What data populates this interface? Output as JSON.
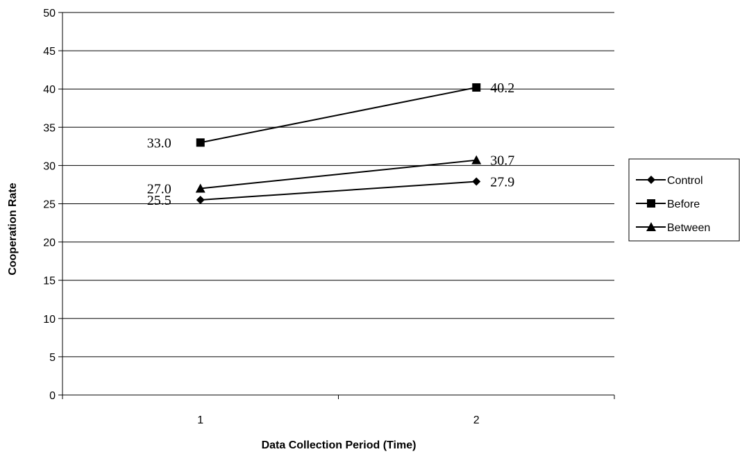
{
  "chart_data": {
    "type": "line",
    "categories": [
      "1",
      "2"
    ],
    "xlabel": "Data Collection Period (Time)",
    "ylabel": "Cooperation Rate",
    "ylim": [
      0,
      50
    ],
    "ytick_step": 5,
    "grid": true,
    "legend_position": "right",
    "series": [
      {
        "name": "Control",
        "marker": "diamond",
        "values": [
          25.5,
          27.9
        ],
        "labels": [
          "25.5",
          "27.9"
        ]
      },
      {
        "name": "Before",
        "marker": "square",
        "values": [
          33.0,
          40.2
        ],
        "labels": [
          "33.0",
          "40.2"
        ]
      },
      {
        "name": "Between",
        "marker": "triangle",
        "values": [
          27.0,
          30.7
        ],
        "labels": [
          "27.0",
          "30.7"
        ]
      }
    ],
    "colors": {
      "line": "#000000",
      "grid": "#000000",
      "background": "#ffffff"
    }
  }
}
